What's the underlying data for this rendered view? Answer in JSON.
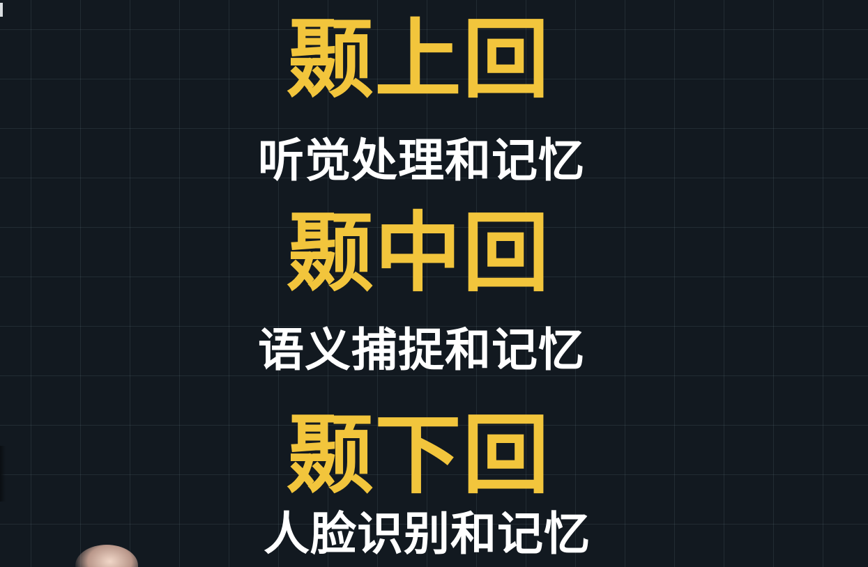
{
  "sections": [
    {
      "title": "颞上回",
      "subtitle": "听觉处理和记忆"
    },
    {
      "title": "颞中回",
      "subtitle": "语义捕捉和记忆"
    },
    {
      "title": "颞下回",
      "subtitle": "人脸识别和记忆"
    }
  ],
  "colors": {
    "background": "#121920",
    "title": "#f2c53c",
    "subtitle": "#ffffff"
  }
}
